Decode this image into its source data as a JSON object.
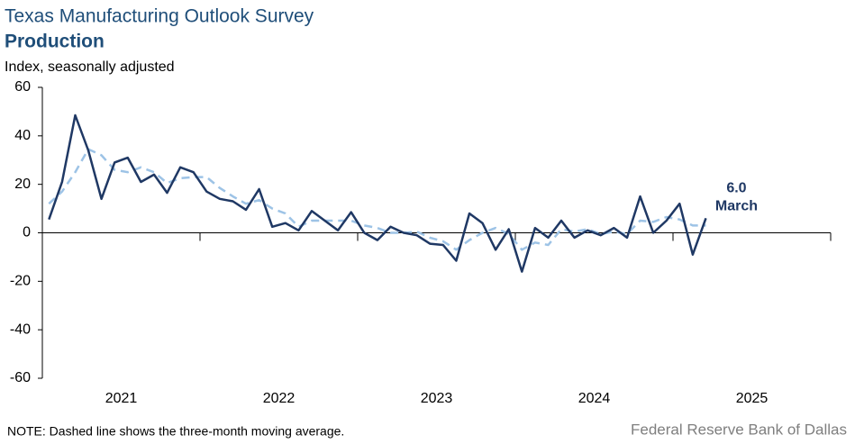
{
  "chart_data": {
    "type": "line",
    "title": "Texas Manufacturing Outlook Survey",
    "subtitle": "Production",
    "y_label": "Index, seasonally adjusted",
    "note": "NOTE: Dashed line shows the three-month  moving average.",
    "source": "Federal Reserve Bank of Dallas",
    "year_labels": [
      "2021",
      "2022",
      "2023",
      "2024",
      "2025"
    ],
    "categories": [
      null,
      null,
      null,
      null,
      null,
      null,
      null,
      null,
      null,
      null,
      null,
      null,
      null,
      null,
      null,
      null,
      null,
      null,
      null,
      null,
      null,
      null,
      null,
      null,
      null,
      null,
      null,
      null,
      null,
      null,
      null,
      null,
      null,
      null,
      null,
      null,
      null,
      null,
      null,
      null,
      null,
      null,
      null,
      null,
      null,
      null,
      null,
      null,
      null,
      null,
      null
    ],
    "series": [
      {
        "color": "#9dc3e6",
        "dashed": true,
        "values": [
          12,
          17,
          25,
          34.5,
          32,
          26,
          25,
          27,
          25,
          20.5,
          22.5,
          23,
          23,
          18.5,
          15,
          12,
          13.5,
          10,
          8,
          2.5,
          5,
          5,
          5,
          5,
          3,
          2,
          0,
          0,
          0.5,
          -2,
          -3.5,
          -7,
          -3,
          0,
          2,
          -0.5,
          -7,
          -4,
          -5,
          1.5,
          0.5,
          1.5,
          -0.5,
          0.5,
          -0.5,
          5,
          4.5,
          6.5,
          5.5,
          3,
          3
        ]
      },
      {
        "color": "#1f3864",
        "dashed": false,
        "values": [
          5.5,
          21,
          48.5,
          34,
          14,
          29,
          31,
          21,
          24,
          16.5,
          27,
          25,
          17,
          14,
          13,
          9.5,
          18,
          2.5,
          4,
          1,
          9,
          5,
          1,
          8.5,
          0,
          -3,
          2.5,
          0,
          -1,
          -4.5,
          -5,
          -11.5,
          8,
          4,
          -7,
          1.5,
          -16,
          2,
          -2,
          5,
          -2,
          1,
          -1,
          2,
          -2,
          15,
          0,
          5,
          12,
          -9,
          6
        ]
      }
    ],
    "annotation": {
      "value_label": "6.0",
      "label": "March"
    },
    "ylim": [
      -60,
      60
    ],
    "yticks": [
      60,
      40,
      20,
      0,
      -20,
      -40,
      -60
    ]
  }
}
